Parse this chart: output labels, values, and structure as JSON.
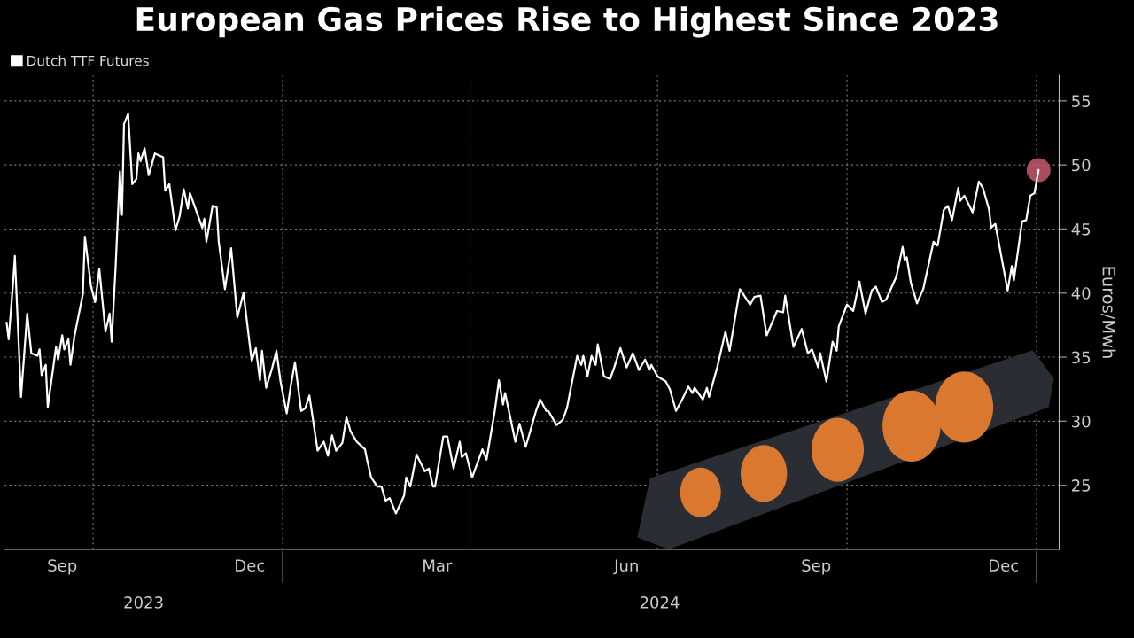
{
  "chart_data": {
    "type": "line",
    "title": "European Gas Prices Rise to Highest Since 2023",
    "ylabel": "Euros/Mwh",
    "xlim": [
      "2023-08-19",
      "2025-01-12"
    ],
    "ylim": [
      20,
      57
    ],
    "yticks": [
      25,
      30,
      35,
      40,
      45,
      50,
      55
    ],
    "xticks": [
      {
        "value": "2023-09-16",
        "label": "Sep"
      },
      {
        "value": "2023-10-01",
        "label": null
      },
      {
        "value": "2023-12-16",
        "label": "Dec"
      },
      {
        "value": "2024-01-01",
        "label": null
      },
      {
        "value": "2024-03-16",
        "label": "Mar"
      },
      {
        "value": "2024-04-01",
        "label": null
      },
      {
        "value": "2024-06-16",
        "label": "Jun"
      },
      {
        "value": "2024-07-01",
        "label": null
      },
      {
        "value": "2024-09-16",
        "label": "Sep"
      },
      {
        "value": "2024-10-01",
        "label": null
      },
      {
        "value": "2024-12-16",
        "label": "Dec"
      },
      {
        "value": "2025-01-01",
        "label": null
      }
    ],
    "grid": true,
    "legend": "top left",
    "annotations": [
      "2023",
      "2024"
    ],
    "series": [
      {
        "name": "Dutch TTF Futures",
        "color": "#ffffff",
        "marker": "none",
        "line_style": "solid",
        "x": [
          "2023-08-20",
          "2023-08-21",
          "2023-08-23",
          "2023-08-24",
          "2023-08-27",
          "2023-08-30",
          "2023-09-01",
          "2023-09-04",
          "2023-09-05",
          "2023-09-06",
          "2023-09-08",
          "2023-09-09",
          "2023-09-13",
          "2023-09-14",
          "2023-09-16",
          "2023-09-17",
          "2023-09-19",
          "2023-09-20",
          "2023-09-22",
          "2023-09-25",
          "2023-09-26",
          "2023-09-27",
          "2023-09-30",
          "2023-10-02",
          "2023-10-04",
          "2023-10-07",
          "2023-10-09",
          "2023-10-10",
          "2023-10-12",
          "2023-10-14",
          "2023-10-15",
          "2023-10-16",
          "2023-10-18",
          "2023-10-20",
          "2023-10-22",
          "2023-10-23",
          "2023-10-24",
          "2023-10-26",
          "2023-10-28",
          "2023-10-31",
          "2023-11-04",
          "2023-11-05",
          "2023-11-07",
          "2023-11-10",
          "2023-11-12",
          "2023-11-14",
          "2023-11-16",
          "2023-11-17",
          "2023-11-23",
          "2023-11-24",
          "2023-11-25",
          "2023-11-28",
          "2023-11-30",
          "2023-12-01",
          "2023-12-04",
          "2023-12-07",
          "2023-12-10",
          "2023-12-13",
          "2023-12-17",
          "2023-12-19",
          "2023-12-21",
          "2023-12-22",
          "2023-12-24",
          "2023-12-27",
          "2023-12-29",
          "2023-12-31",
          "2024-01-03",
          "2024-01-05",
          "2024-01-07",
          "2024-01-10",
          "2024-01-12",
          "2024-01-14",
          "2024-01-18",
          "2024-01-21",
          "2024-01-23",
          "2024-01-25",
          "2024-01-27",
          "2024-01-30",
          "2024-02-01",
          "2024-02-03",
          "2024-02-06",
          "2024-02-10",
          "2024-02-11",
          "2024-02-13",
          "2024-02-16",
          "2024-02-18",
          "2024-02-20",
          "2024-02-22",
          "2024-02-25",
          "2024-02-29",
          "2024-03-01",
          "2024-03-03",
          "2024-03-06",
          "2024-03-10",
          "2024-03-12",
          "2024-03-14",
          "2024-03-15",
          "2024-03-19",
          "2024-03-21",
          "2024-03-24",
          "2024-03-27",
          "2024-03-28",
          "2024-03-30",
          "2024-04-02",
          "2024-04-07",
          "2024-04-09",
          "2024-04-13",
          "2024-04-15",
          "2024-04-17",
          "2024-04-18",
          "2024-04-23",
          "2024-04-25",
          "2024-04-28",
          "2024-04-30",
          "2024-05-03",
          "2024-05-05",
          "2024-05-08",
          "2024-05-09",
          "2024-05-13",
          "2024-05-16",
          "2024-05-18",
          "2024-05-23",
          "2024-05-25",
          "2024-05-26",
          "2024-05-28",
          "2024-05-30",
          "2024-06-01",
          "2024-06-02",
          "2024-06-05",
          "2024-06-08",
          "2024-06-10",
          "2024-06-13",
          "2024-06-16",
          "2024-06-19",
          "2024-06-22",
          "2024-06-25",
          "2024-06-27",
          "2024-06-28",
          "2024-07-01",
          "2024-07-05",
          "2024-07-07",
          "2024-07-10",
          "2024-07-13",
          "2024-07-16",
          "2024-07-18",
          "2024-07-19",
          "2024-07-23",
          "2024-07-25",
          "2024-07-26",
          "2024-07-30",
          "2024-08-03",
          "2024-08-05",
          "2024-08-10",
          "2024-08-15",
          "2024-08-17",
          "2024-08-20",
          "2024-08-23",
          "2024-08-28",
          "2024-08-31",
          "2024-09-01",
          "2024-09-05",
          "2024-09-09",
          "2024-09-12",
          "2024-09-14",
          "2024-09-17",
          "2024-09-18",
          "2024-09-21",
          "2024-09-24",
          "2024-09-26",
          "2024-09-27",
          "2024-10-01",
          "2024-10-04",
          "2024-10-07",
          "2024-10-10",
          "2024-10-13",
          "2024-10-15",
          "2024-10-18",
          "2024-10-20",
          "2024-10-25",
          "2024-10-28",
          "2024-10-29",
          "2024-10-30",
          "2024-11-01",
          "2024-11-04",
          "2024-11-07",
          "2024-11-12",
          "2024-11-14",
          "2024-11-17",
          "2024-11-19",
          "2024-11-21",
          "2024-11-24",
          "2024-11-25",
          "2024-11-27",
          "2024-12-01",
          "2024-12-04",
          "2024-12-06",
          "2024-12-09",
          "2024-12-10",
          "2024-12-12",
          "2024-12-18",
          "2024-12-20",
          "2024-12-21",
          "2024-12-25",
          "2024-12-27",
          "2024-12-29",
          "2024-12-31",
          "2025-01-02"
        ],
        "values": [
          37.7,
          36.4,
          40.5,
          42.9,
          31.9,
          38.4,
          35.3,
          35.1,
          35.6,
          33.6,
          34.4,
          31.1,
          35.8,
          34.8,
          36.7,
          35.6,
          36.4,
          34.4,
          36.7,
          39.1,
          39.9,
          44.4,
          40.5,
          39.3,
          41.9,
          37.0,
          38.4,
          36.2,
          42.3,
          49.5,
          46.1,
          53.2,
          54.0,
          48.5,
          48.9,
          50.9,
          50.3,
          51.3,
          49.2,
          50.9,
          50.6,
          48.0,
          48.5,
          44.9,
          46.0,
          48.1,
          46.6,
          47.8,
          45.1,
          45.8,
          44.0,
          46.8,
          46.7,
          44.0,
          40.3,
          43.5,
          38.1,
          40.0,
          34.7,
          35.7,
          33.2,
          35.5,
          32.6,
          34.2,
          35.5,
          33.1,
          30.6,
          32.8,
          34.6,
          30.8,
          31.0,
          32.0,
          27.7,
          28.4,
          27.3,
          28.9,
          27.7,
          28.3,
          30.3,
          29.2,
          28.4,
          27.8,
          27.0,
          25.6,
          24.9,
          24.9,
          23.8,
          24.0,
          22.8,
          24.2,
          25.6,
          24.9,
          27.4,
          26.1,
          26.3,
          24.9,
          24.9,
          28.8,
          28.8,
          26.3,
          28.4,
          27.2,
          27.5,
          25.6,
          27.8,
          27.0,
          30.8,
          33.2,
          31.3,
          32.2,
          28.4,
          29.8,
          28.0,
          29.1,
          30.8,
          31.7,
          30.8,
          30.8,
          29.7,
          30.1,
          31.0,
          35.1,
          34.4,
          35.1,
          33.5,
          35.1,
          34.4,
          36.0,
          33.5,
          33.3,
          34.2,
          35.7,
          34.2,
          35.3,
          34.0,
          34.8,
          34.0,
          34.4,
          33.5,
          33.1,
          32.5,
          30.8,
          31.7,
          32.7,
          32.2,
          32.6,
          31.7,
          32.6,
          31.9,
          34.2,
          37.0,
          35.5,
          40.3,
          39.1,
          39.7,
          39.8,
          36.7,
          38.6,
          38.5,
          39.8,
          35.8,
          37.2,
          35.3,
          35.6,
          34.2,
          35.3,
          33.1,
          36.2,
          35.5,
          37.4,
          39.1,
          38.6,
          40.9,
          38.4,
          40.2,
          40.5,
          39.3,
          39.5,
          41.3,
          43.6,
          42.6,
          42.8,
          40.8,
          39.2,
          40.3,
          44.0,
          43.7,
          46.5,
          46.8,
          45.7,
          48.2,
          47.2,
          47.6,
          46.3,
          48.7,
          48.2,
          46.5,
          45.1,
          45.4,
          40.2,
          42.1,
          41.0,
          45.6,
          45.7,
          47.6,
          47.8,
          49.6
        ]
      },
      {
        "type": "scatter",
        "color": "#c65a6e",
        "marker": "circle",
        "x": [
          "2025-01-02"
        ],
        "values": [
          49.6
        ]
      }
    ]
  }
}
